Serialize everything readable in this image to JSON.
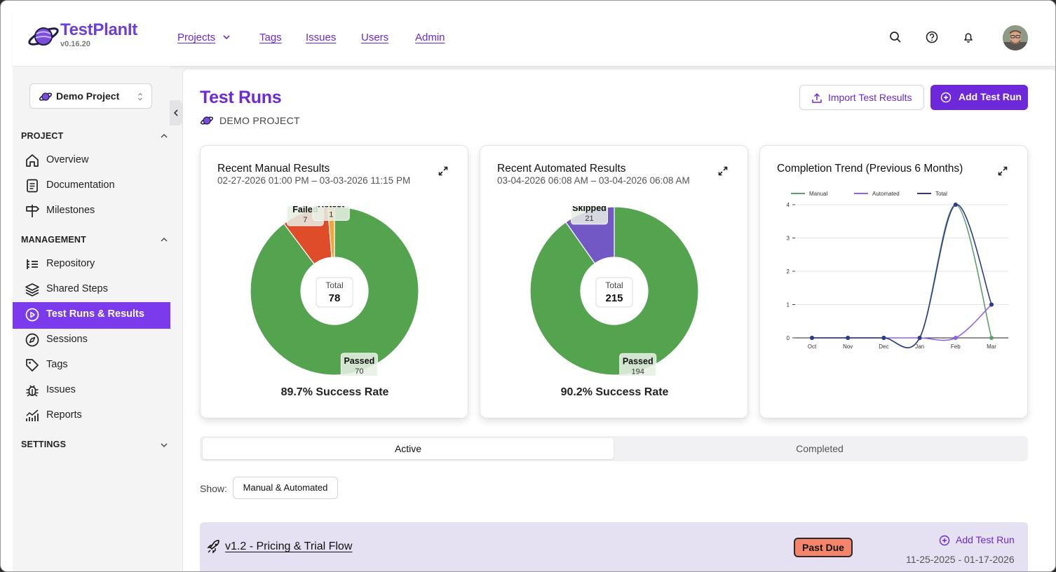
{
  "brand": {
    "name": "TestPlanIt",
    "version": "v0.16.20"
  },
  "nav": [
    {
      "label": "Projects",
      "has_dropdown": true
    },
    {
      "label": "Tags"
    },
    {
      "label": "Issues"
    },
    {
      "label": "Users"
    },
    {
      "label": "Admin"
    }
  ],
  "header_icons": [
    "search-icon",
    "help-icon",
    "bell-icon"
  ],
  "sidebar": {
    "project_select": "Demo Project",
    "sections": [
      {
        "label": "PROJECT",
        "expanded": true,
        "items": [
          "Overview",
          "Documentation",
          "Milestones"
        ]
      },
      {
        "label": "MANAGEMENT",
        "expanded": true,
        "items": [
          "Repository",
          "Shared Steps",
          "Test Runs & Results",
          "Sessions",
          "Tags",
          "Issues",
          "Reports"
        ]
      },
      {
        "label": "SETTINGS",
        "expanded": false,
        "items": []
      }
    ],
    "active_item": "Test Runs & Results"
  },
  "page": {
    "title": "Test Runs",
    "project_label": "DEMO PROJECT",
    "import_button": "Import Test Results",
    "add_button": "Add Test Run"
  },
  "cards": {
    "manual": {
      "title": "Recent Manual Results",
      "range": "02-27-2026 01:00 PM – 03-03-2026 11:15 PM",
      "total_label": "Total",
      "total": "78",
      "success_rate": "89.7% Success Rate"
    },
    "automated": {
      "title": "Recent Automated Results",
      "range": "03-04-2026 06:08 AM – 03-04-2026 06:08 AM",
      "total_label": "Total",
      "total": "215",
      "success_rate": "90.2% Success Rate"
    },
    "trend": {
      "title": "Completion Trend (Previous 6 Months)"
    }
  },
  "chart_data": [
    {
      "type": "pie",
      "title": "Recent Manual Results",
      "categories": [
        "Passed",
        "Failed",
        "Retest"
      ],
      "values": [
        70,
        7,
        1
      ],
      "colors": [
        "#53a34f",
        "#df4c2a",
        "#f2a63a"
      ]
    },
    {
      "type": "pie",
      "title": "Recent Automated Results",
      "categories": [
        "Passed",
        "Skipped"
      ],
      "values": [
        194,
        21
      ],
      "colors": [
        "#53a34f",
        "#7258c4"
      ]
    },
    {
      "type": "line",
      "title": "Completion Trend (Previous 6 Months)",
      "categories": [
        "Oct",
        "Nov",
        "Dec",
        "Jan",
        "Feb",
        "Mar"
      ],
      "series": [
        {
          "name": "Manual",
          "values": [
            0,
            0,
            0,
            0,
            4,
            0
          ],
          "color": "#5aa06f"
        },
        {
          "name": "Automated",
          "values": [
            0,
            0,
            0,
            0,
            0,
            1
          ],
          "color": "#9061f0"
        },
        {
          "name": "Total",
          "values": [
            0,
            0,
            0,
            0,
            4,
            1
          ],
          "color": "#2e3a8c"
        }
      ],
      "yticks": [
        "0",
        "1",
        "2",
        "3",
        "4"
      ],
      "ylim": [
        0,
        4
      ],
      "grid": true,
      "legend": "top"
    }
  ],
  "tabs": {
    "active": "Active",
    "inactive": "Completed"
  },
  "filter": {
    "label": "Show:",
    "value": "Manual & Automated"
  },
  "milestone": {
    "name": "v1.2 - Pricing & Trial Flow",
    "badge": "Past Due",
    "add_label": "Add Test Run",
    "dates": "11-25-2025 - 01-17-2026"
  }
}
